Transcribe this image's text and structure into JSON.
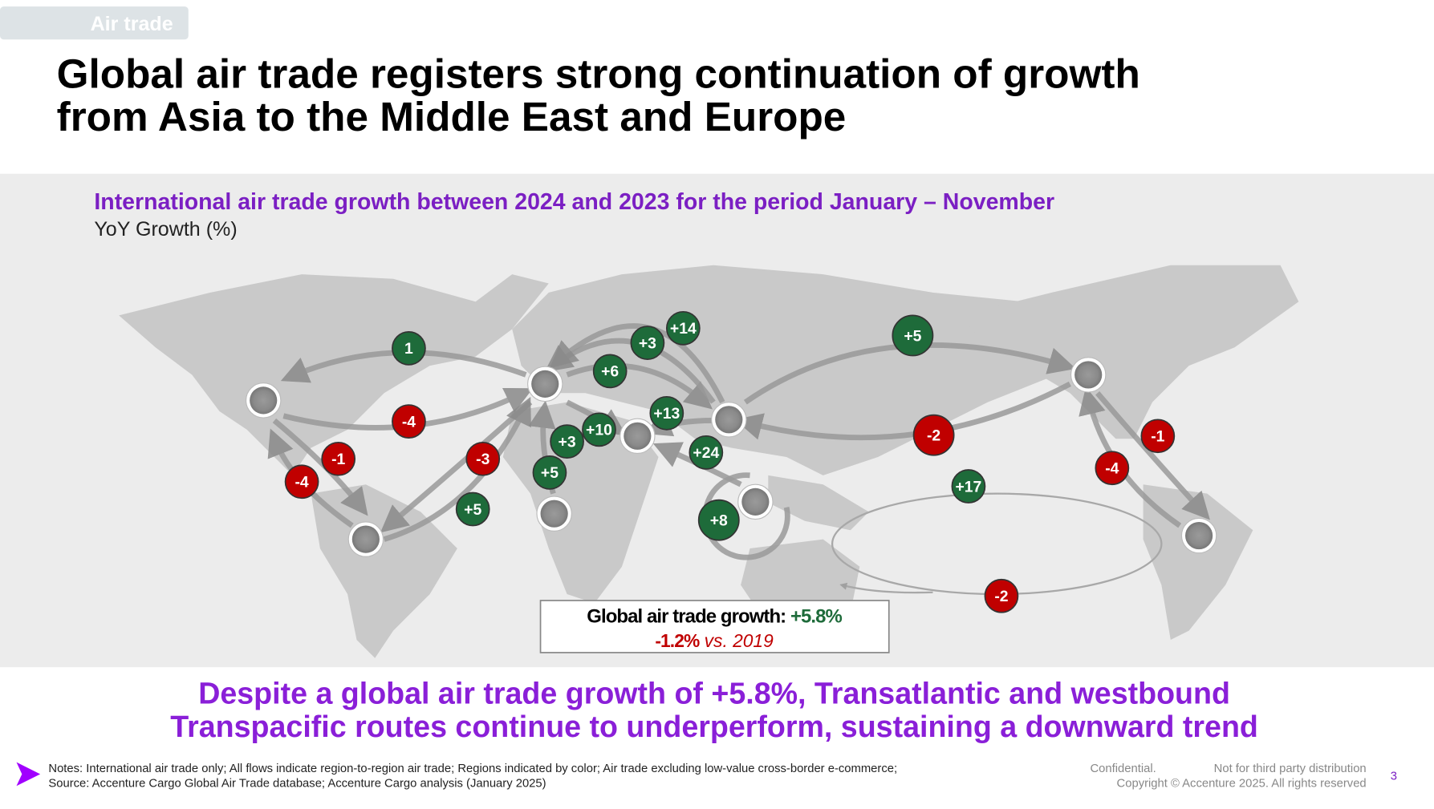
{
  "header": {
    "tag": "Air trade",
    "title_lines": [
      "Global air trade registers strong continuation of growth",
      "from Asia to the Middle East and Europe"
    ]
  },
  "map": {
    "title": "International air trade growth between 2024 and 2023 for the period January – November",
    "subtitle": "YoY Growth (%)",
    "flows": [
      "1",
      "-4",
      "-1",
      "-4",
      "-3",
      "+5",
      "+5",
      "+3",
      "+10",
      "+6",
      "+3",
      "+14",
      "+13",
      "+24",
      "+8",
      "+5",
      "-2",
      "+17",
      "-1",
      "-4",
      "-2"
    ],
    "summary": {
      "label": "Global air trade growth:",
      "value": "+5.8%",
      "vs_value": "-1.2%",
      "vs_label": "vs. 2019"
    }
  },
  "takeaway_lines": [
    "Despite a global air trade growth of +5.8%, Transatlantic and westbound",
    "Transpacific routes continue to underperform, sustaining a downward trend"
  ],
  "footer": {
    "notes": "Notes: International air trade only; All flows indicate region-to-region air trade; Regions indicated by color; Air trade excluding low-value cross-border e-commerce;",
    "source": "Source: Accenture Cargo Global Air Trade database; Accenture Cargo analysis (January 2025)",
    "confidential": "Confidential.",
    "distribution": "Not for third party distribution",
    "copyright": "Copyright © Accenture 2025. All rights reserved",
    "page": "3"
  }
}
